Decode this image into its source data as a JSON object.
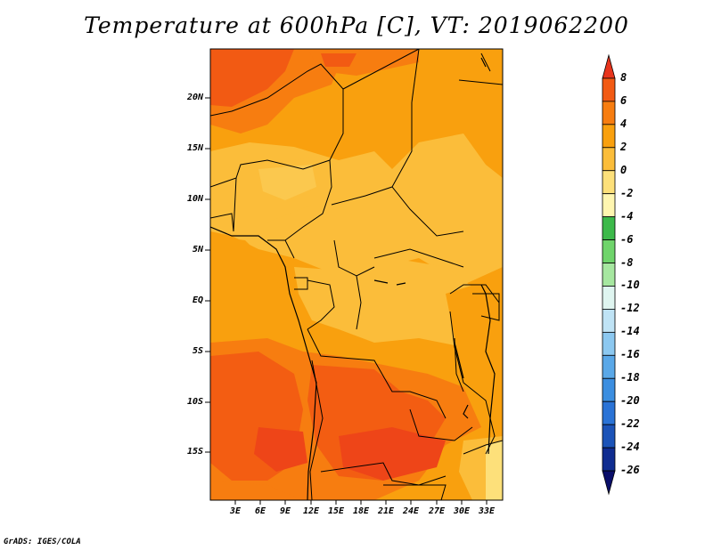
{
  "title": "Temperature at 600hPa [C], VT: 2019062200",
  "credit": "GrADS: IGES/COLA",
  "map": {
    "lat_ticks": [
      "20N",
      "15N",
      "10N",
      "5N",
      "EQ",
      "5S",
      "10S",
      "15S"
    ],
    "lon_ticks": [
      "3E",
      "6E",
      "9E",
      "12E",
      "15E",
      "18E",
      "21E",
      "24E",
      "27E",
      "30E",
      "33E"
    ]
  },
  "colorbar": {
    "levels": [
      "8",
      "6",
      "4",
      "2",
      "0",
      "-2",
      "-4",
      "-6",
      "-8",
      "-10",
      "-12",
      "-14",
      "-16",
      "-18",
      "-20",
      "-22",
      "-24",
      "-26"
    ],
    "colors": [
      "#e8341c",
      "#f25a13",
      "#f77d10",
      "#f9a00e",
      "#fbbd3a",
      "#fde07a",
      "#fff6b0",
      "#3cb94a",
      "#6fd46b",
      "#a6e7a0",
      "#dff5f0",
      "#bfe3f5",
      "#8cc8f0",
      "#5aa8e8",
      "#3b8ee0",
      "#2a73d6",
      "#1b53b8",
      "#0f2c90",
      "#0a0e6a"
    ]
  }
}
